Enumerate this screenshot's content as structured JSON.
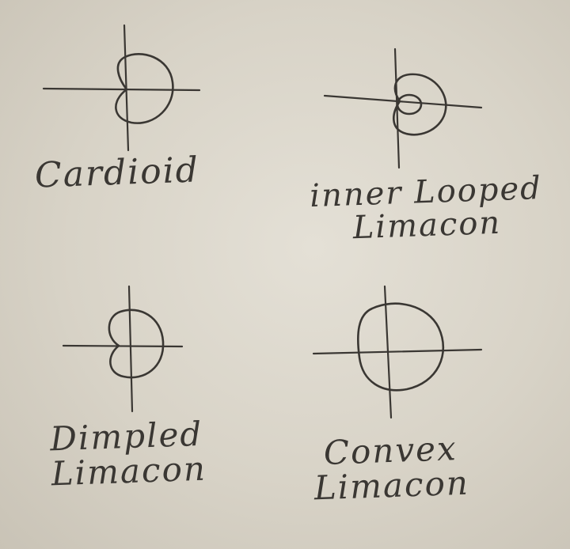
{
  "diagrams": [
    {
      "id": "cardioid",
      "label_lines": [
        "Cardioid"
      ]
    },
    {
      "id": "inner-looped",
      "label_lines": [
        "inner Looped",
        "Limacon"
      ]
    },
    {
      "id": "dimpled",
      "label_lines": [
        "Dimpled",
        "Limacon"
      ]
    },
    {
      "id": "convex",
      "label_lines": [
        "Convex",
        "Limacon"
      ]
    }
  ],
  "colors": {
    "paper": "#dcd7cb",
    "pencil": "#3a3733"
  }
}
